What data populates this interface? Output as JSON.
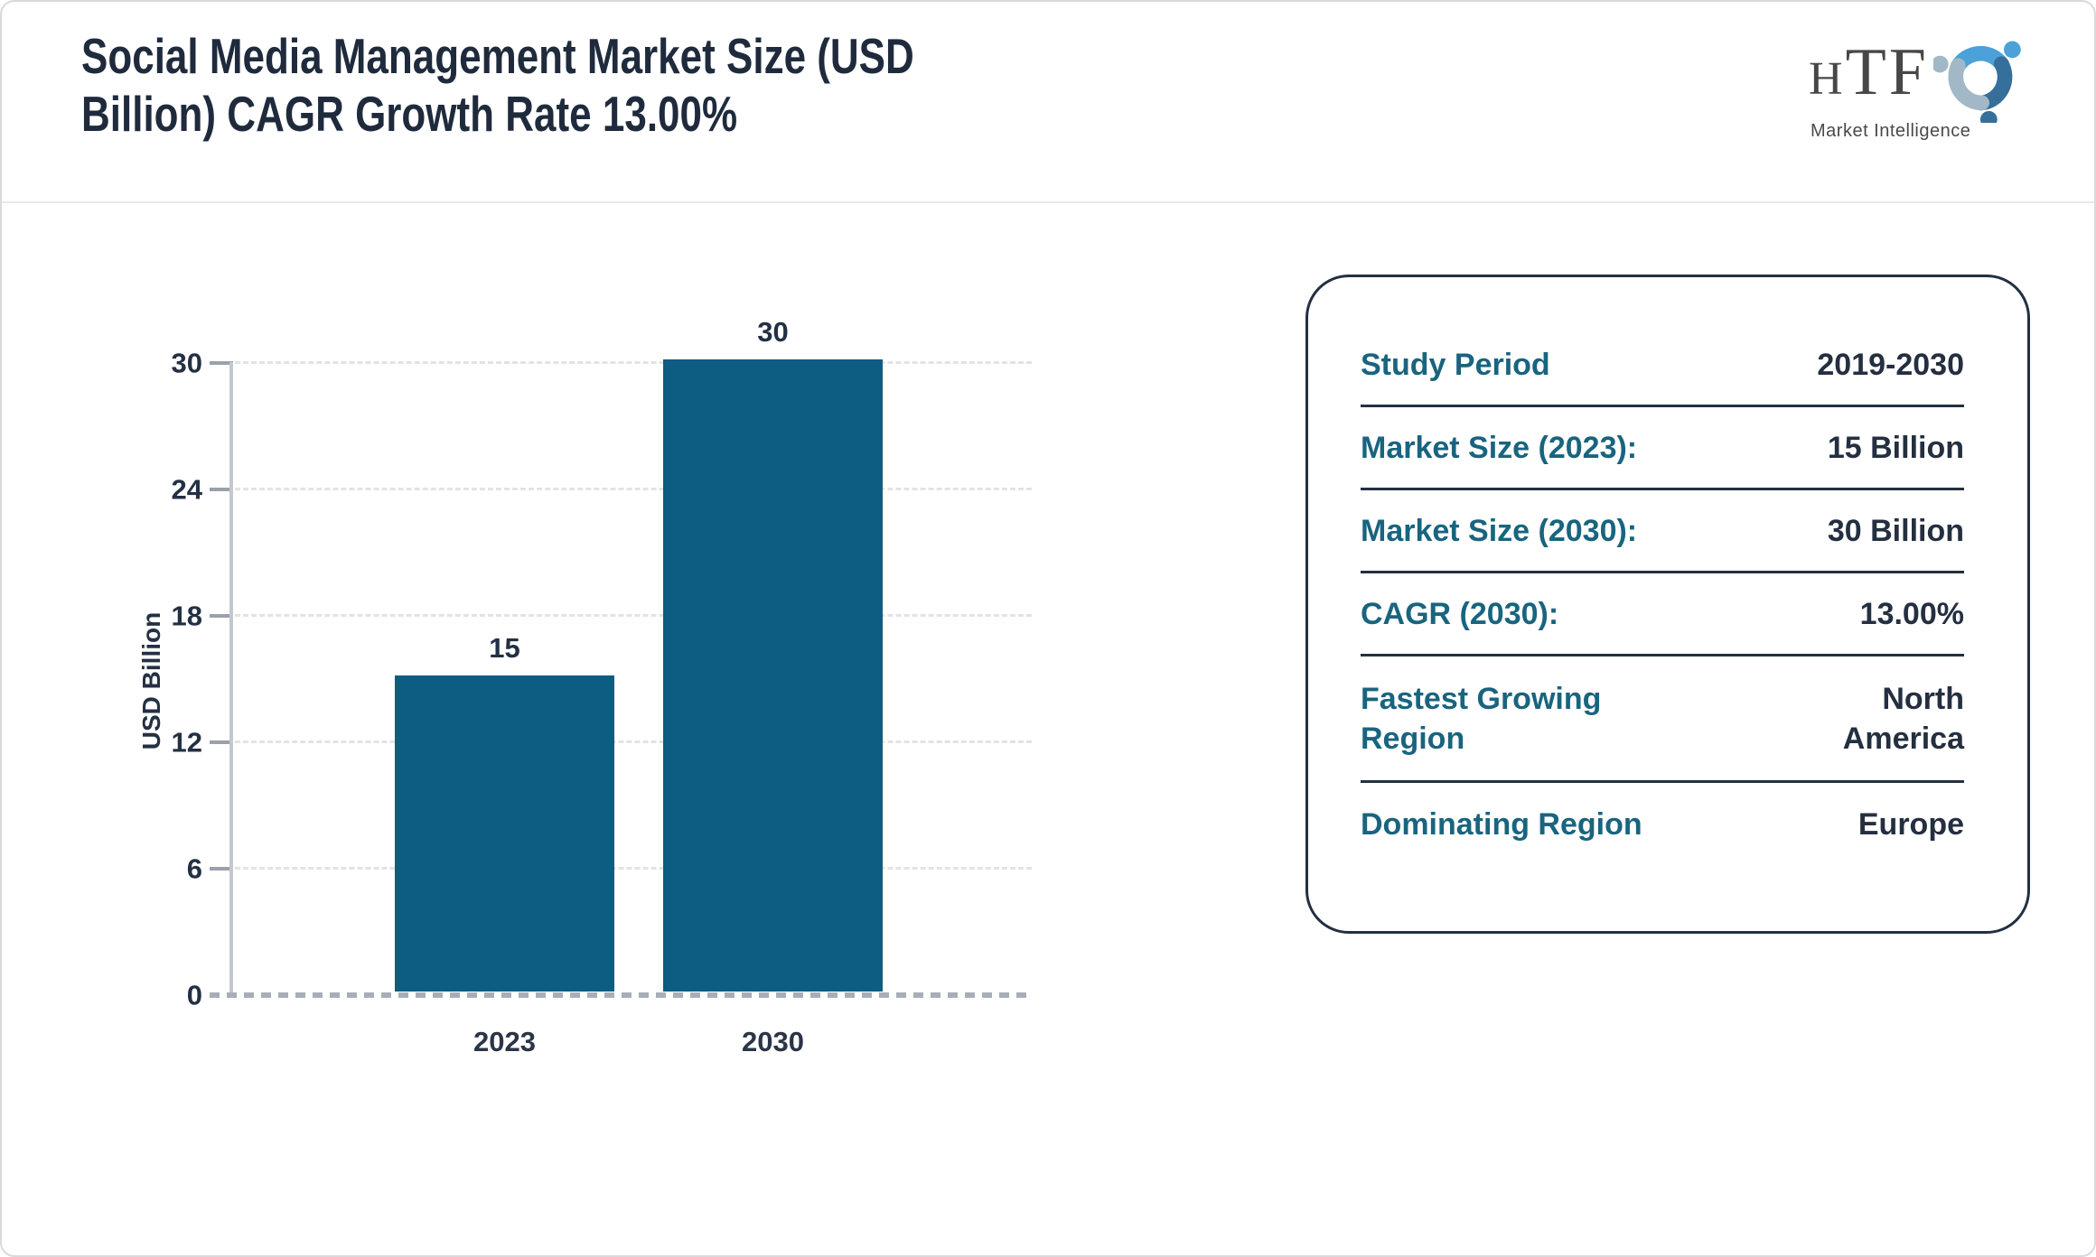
{
  "header": {
    "title_line1": "Social Media Management Market Size (USD",
    "title_line2": "Billion) CAGR Growth Rate 13.00%"
  },
  "logo": {
    "name_h": "H",
    "name_tf": "TF",
    "tagline": "Market Intelligence"
  },
  "chart_data": {
    "type": "bar",
    "title": "Social Media Management Market Size (USD Billion) CAGR Growth Rate 13.00%",
    "categories": [
      "2023",
      "2030"
    ],
    "values": [
      15,
      30
    ],
    "ylabel": "USD Billion",
    "xlabel": "",
    "ylim": [
      0,
      30
    ],
    "yticks": [
      0,
      6,
      12,
      18,
      24,
      30
    ],
    "grid": "horizontal dashed gridlines, dashed gray baseline at 0",
    "legend": "none",
    "bar_color": "#0d5c81"
  },
  "info_panel": {
    "rows": [
      {
        "label": "Study Period",
        "value": "2019-2030"
      },
      {
        "label": "Market Size (2023):",
        "value": "15 Billion"
      },
      {
        "label": "Market Size (2030):",
        "value": "30 Billion"
      },
      {
        "label": "CAGR (2030):",
        "value": "13.00%"
      },
      {
        "label": "Fastest Growing Region",
        "value": "North America"
      },
      {
        "label": "Dominating Region",
        "value": "Europe"
      }
    ]
  },
  "colors": {
    "title_text": "#1f2b3d",
    "bar": "#0d5c81",
    "panel_border": "#223041",
    "panel_label": "#19647f",
    "panel_value": "#242f40",
    "axis_gray": "#c3c7ce",
    "gridline": "#e3e3e6",
    "baseline": "#a8aeb8",
    "logo_blue_light": "#4ba1d8",
    "logo_blue_dark": "#356f9a",
    "logo_blue_pale": "#a3b8c6"
  }
}
